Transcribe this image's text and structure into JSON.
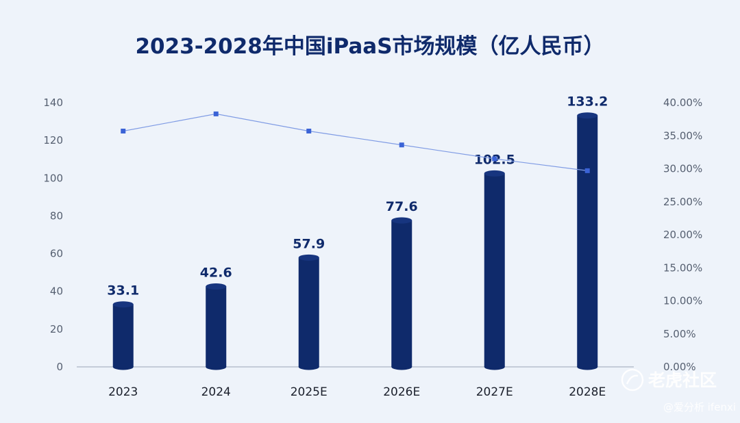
{
  "chart_data": {
    "type": "bar",
    "title": "2023-2028年中国iPaaS市场规模（亿人民币）",
    "categories": [
      "2023",
      "2024",
      "2025E",
      "2026E",
      "2027E",
      "2028E"
    ],
    "series": [
      {
        "type": "bar",
        "axis": "left",
        "values": [
          33.1,
          42.6,
          57.9,
          77.6,
          102.5,
          133.2
        ],
        "labels": [
          "33.1",
          "42.6",
          "57.9",
          "77.6",
          "102.5",
          "133.2"
        ],
        "color": "#0f2a6b"
      },
      {
        "type": "line",
        "axis": "right",
        "values": [
          0.357,
          0.383,
          0.357,
          0.336,
          0.315,
          0.297
        ],
        "color": "#3b63d6"
      }
    ],
    "left_axis": {
      "ticks": [
        "0",
        "20",
        "40",
        "60",
        "80",
        "100",
        "120",
        "140"
      ],
      "ylim": [
        0,
        140
      ]
    },
    "right_axis": {
      "ticks": [
        "0.00%",
        "5.00%",
        "10.00%",
        "15.00%",
        "20.00%",
        "25.00%",
        "30.00%",
        "35.00%",
        "40.00%"
      ],
      "ylim": [
        0,
        0.4
      ]
    },
    "grid": false,
    "legend": "none"
  },
  "watermark": {
    "line1": "老虎社区",
    "line2": "@爱分析 ifenxi"
  },
  "colors": {
    "background": "#eef3fa",
    "title": "#0f2a6b",
    "bar": "#0f2a6b",
    "line": "#3b63d6",
    "axis_text": "#555f70"
  }
}
